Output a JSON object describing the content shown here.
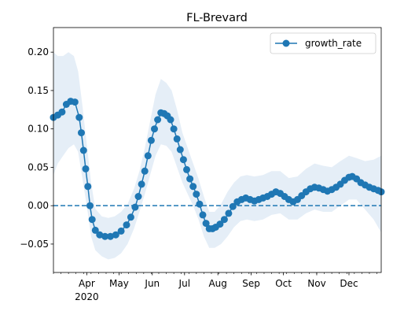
{
  "chart_data": {
    "type": "line",
    "title": "FL-Brevard",
    "xlabel": "",
    "ylabel": "",
    "x_start": "2020-03-01",
    "x_end": "2020-12-31",
    "ylim": [
      -0.087,
      0.232
    ],
    "yticks": [
      -0.05,
      0.0,
      0.05,
      0.1,
      0.15,
      0.2
    ],
    "ytick_labels": [
      "−0.05",
      "0.00",
      "0.05",
      "0.10",
      "0.15",
      "0.20"
    ],
    "xticks": [
      {
        "date": "2020-04-01",
        "label": "Apr",
        "sublabel": "2020"
      },
      {
        "date": "2020-05-01",
        "label": "May"
      },
      {
        "date": "2020-06-01",
        "label": "Jun"
      },
      {
        "date": "2020-07-01",
        "label": "Jul"
      },
      {
        "date": "2020-08-01",
        "label": "Aug"
      },
      {
        "date": "2020-09-01",
        "label": "Sep"
      },
      {
        "date": "2020-10-01",
        "label": "Oct"
      },
      {
        "date": "2020-11-01",
        "label": "Nov"
      },
      {
        "date": "2020-12-01",
        "label": "Dec"
      }
    ],
    "legend": {
      "position": "top-right",
      "entries": [
        "growth_rate"
      ]
    },
    "reference_line": {
      "y": 0,
      "style": "dashed"
    },
    "colors": {
      "series": "#1f77b4",
      "band": "#dce8f4"
    },
    "series": [
      {
        "name": "growth_rate",
        "points": [
          [
            "2020-03-01",
            0.115
          ],
          [
            "2020-03-05",
            0.118
          ],
          [
            "2020-03-09",
            0.122
          ],
          [
            "2020-03-13",
            0.132
          ],
          [
            "2020-03-17",
            0.136
          ],
          [
            "2020-03-21",
            0.135
          ],
          [
            "2020-03-25",
            0.115
          ],
          [
            "2020-03-27",
            0.095
          ],
          [
            "2020-03-29",
            0.072
          ],
          [
            "2020-03-31",
            0.048
          ],
          [
            "2020-04-02",
            0.025
          ],
          [
            "2020-04-04",
            0.0
          ],
          [
            "2020-04-06",
            -0.018
          ],
          [
            "2020-04-09",
            -0.032
          ],
          [
            "2020-04-13",
            -0.038
          ],
          [
            "2020-04-18",
            -0.04
          ],
          [
            "2020-04-23",
            -0.04
          ],
          [
            "2020-04-28",
            -0.038
          ],
          [
            "2020-05-03",
            -0.033
          ],
          [
            "2020-05-08",
            -0.025
          ],
          [
            "2020-05-12",
            -0.015
          ],
          [
            "2020-05-16",
            -0.002
          ],
          [
            "2020-05-19",
            0.012
          ],
          [
            "2020-05-22",
            0.028
          ],
          [
            "2020-05-25",
            0.045
          ],
          [
            "2020-05-28",
            0.065
          ],
          [
            "2020-05-31",
            0.085
          ],
          [
            "2020-06-03",
            0.1
          ],
          [
            "2020-06-06",
            0.112
          ],
          [
            "2020-06-09",
            0.121
          ],
          [
            "2020-06-12",
            0.12
          ],
          [
            "2020-06-15",
            0.117
          ],
          [
            "2020-06-18",
            0.112
          ],
          [
            "2020-06-21",
            0.1
          ],
          [
            "2020-06-24",
            0.087
          ],
          [
            "2020-06-27",
            0.073
          ],
          [
            "2020-06-30",
            0.06
          ],
          [
            "2020-07-03",
            0.047
          ],
          [
            "2020-07-06",
            0.035
          ],
          [
            "2020-07-09",
            0.025
          ],
          [
            "2020-07-12",
            0.015
          ],
          [
            "2020-07-15",
            0.002
          ],
          [
            "2020-07-18",
            -0.012
          ],
          [
            "2020-07-21",
            -0.023
          ],
          [
            "2020-07-24",
            -0.03
          ],
          [
            "2020-07-27",
            -0.03
          ],
          [
            "2020-07-30",
            -0.028
          ],
          [
            "2020-08-03",
            -0.024
          ],
          [
            "2020-08-07",
            -0.018
          ],
          [
            "2020-08-11",
            -0.01
          ],
          [
            "2020-08-15",
            -0.001
          ],
          [
            "2020-08-19",
            0.005
          ],
          [
            "2020-08-23",
            0.008
          ],
          [
            "2020-08-27",
            0.01
          ],
          [
            "2020-08-31",
            0.008
          ],
          [
            "2020-09-04",
            0.006
          ],
          [
            "2020-09-08",
            0.008
          ],
          [
            "2020-09-12",
            0.01
          ],
          [
            "2020-09-16",
            0.012
          ],
          [
            "2020-09-20",
            0.015
          ],
          [
            "2020-09-24",
            0.018
          ],
          [
            "2020-09-28",
            0.016
          ],
          [
            "2020-10-02",
            0.012
          ],
          [
            "2020-10-06",
            0.008
          ],
          [
            "2020-10-10",
            0.005
          ],
          [
            "2020-10-14",
            0.008
          ],
          [
            "2020-10-18",
            0.013
          ],
          [
            "2020-10-22",
            0.018
          ],
          [
            "2020-10-26",
            0.022
          ],
          [
            "2020-10-30",
            0.024
          ],
          [
            "2020-11-03",
            0.023
          ],
          [
            "2020-11-07",
            0.021
          ],
          [
            "2020-11-11",
            0.019
          ],
          [
            "2020-11-15",
            0.021
          ],
          [
            "2020-11-19",
            0.024
          ],
          [
            "2020-11-23",
            0.028
          ],
          [
            "2020-11-27",
            0.033
          ],
          [
            "2020-12-01",
            0.037
          ],
          [
            "2020-12-04",
            0.038
          ],
          [
            "2020-12-08",
            0.035
          ],
          [
            "2020-12-12",
            0.03
          ],
          [
            "2020-12-16",
            0.027
          ],
          [
            "2020-12-20",
            0.024
          ],
          [
            "2020-12-24",
            0.022
          ],
          [
            "2020-12-28",
            0.02
          ],
          [
            "2020-12-31",
            0.018
          ]
        ]
      }
    ],
    "band": {
      "points": [
        [
          "2020-03-01",
          0.04,
          0.2
        ],
        [
          "2020-03-05",
          0.055,
          0.195
        ],
        [
          "2020-03-10",
          0.065,
          0.195
        ],
        [
          "2020-03-15",
          0.075,
          0.2
        ],
        [
          "2020-03-20",
          0.08,
          0.195
        ],
        [
          "2020-03-24",
          0.07,
          0.175
        ],
        [
          "2020-03-28",
          0.035,
          0.13
        ],
        [
          "2020-04-01",
          0.0,
          0.08
        ],
        [
          "2020-04-05",
          -0.04,
          0.03
        ],
        [
          "2020-04-09",
          -0.058,
          -0.004
        ],
        [
          "2020-04-15",
          -0.066,
          -0.014
        ],
        [
          "2020-04-21",
          -0.07,
          -0.016
        ],
        [
          "2020-04-27",
          -0.068,
          -0.014
        ],
        [
          "2020-05-03",
          -0.062,
          -0.008
        ],
        [
          "2020-05-09",
          -0.05,
          0.002
        ],
        [
          "2020-05-15",
          -0.03,
          0.022
        ],
        [
          "2020-05-20",
          -0.008,
          0.045
        ],
        [
          "2020-05-25",
          0.015,
          0.075
        ],
        [
          "2020-05-30",
          0.04,
          0.11
        ],
        [
          "2020-06-04",
          0.065,
          0.145
        ],
        [
          "2020-06-09",
          0.08,
          0.165
        ],
        [
          "2020-06-14",
          0.078,
          0.16
        ],
        [
          "2020-06-19",
          0.07,
          0.15
        ],
        [
          "2020-06-24",
          0.05,
          0.125
        ],
        [
          "2020-06-29",
          0.03,
          0.095
        ],
        [
          "2020-07-04",
          0.015,
          0.075
        ],
        [
          "2020-07-09",
          0.0,
          0.055
        ],
        [
          "2020-07-14",
          -0.018,
          0.035
        ],
        [
          "2020-07-19",
          -0.04,
          0.012
        ],
        [
          "2020-07-24",
          -0.055,
          -0.008
        ],
        [
          "2020-07-29",
          -0.055,
          -0.008
        ],
        [
          "2020-08-04",
          -0.05,
          0.002
        ],
        [
          "2020-08-10",
          -0.04,
          0.018
        ],
        [
          "2020-08-16",
          -0.028,
          0.03
        ],
        [
          "2020-08-22",
          -0.02,
          0.038
        ],
        [
          "2020-08-28",
          -0.018,
          0.04
        ],
        [
          "2020-09-04",
          -0.02,
          0.038
        ],
        [
          "2020-09-12",
          -0.018,
          0.04
        ],
        [
          "2020-09-20",
          -0.012,
          0.045
        ],
        [
          "2020-09-28",
          -0.01,
          0.045
        ],
        [
          "2020-10-06",
          -0.018,
          0.036
        ],
        [
          "2020-10-14",
          -0.018,
          0.038
        ],
        [
          "2020-10-22",
          -0.01,
          0.048
        ],
        [
          "2020-10-30",
          -0.005,
          0.055
        ],
        [
          "2020-11-07",
          -0.008,
          0.052
        ],
        [
          "2020-11-15",
          -0.008,
          0.05
        ],
        [
          "2020-11-23",
          0.0,
          0.058
        ],
        [
          "2020-12-01",
          0.008,
          0.065
        ],
        [
          "2020-12-08",
          0.008,
          0.062
        ],
        [
          "2020-12-16",
          -0.005,
          0.058
        ],
        [
          "2020-12-24",
          -0.018,
          0.06
        ],
        [
          "2020-12-31",
          -0.035,
          0.065
        ]
      ]
    }
  }
}
